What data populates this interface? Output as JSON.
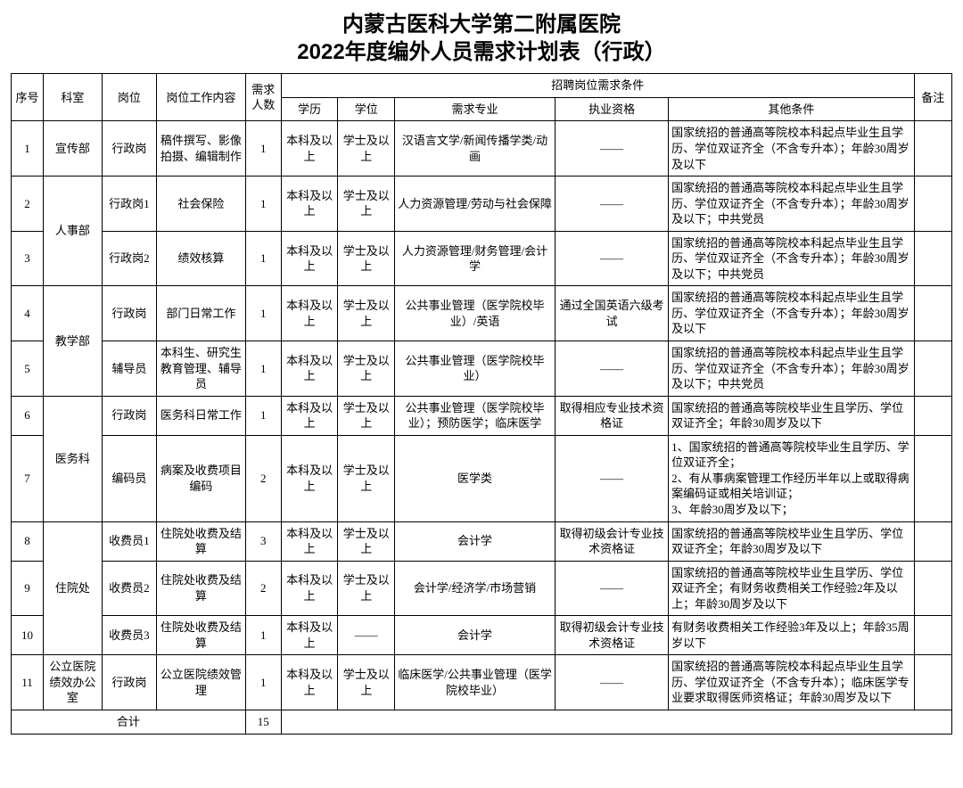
{
  "title_line1": "内蒙古医科大学第二附属医院",
  "title_line2": "2022年度编外人员需求计划表（行政）",
  "headers": {
    "seq": "序号",
    "dept": "科室",
    "pos": "岗位",
    "work": "岗位工作内容",
    "num": "需求人数",
    "req_group": "招聘岗位需求条件",
    "edu": "学历",
    "degree": "学位",
    "major": "需求专业",
    "qual": "执业资格",
    "other": "其他条件",
    "note": "备注"
  },
  "rows": [
    {
      "seq": "1",
      "dept": "宣传部",
      "pos": "行政岗",
      "work": "稿件撰写、影像拍摄、编辑制作",
      "num": "1",
      "edu": "本科及以上",
      "deg": "学士及以上",
      "major": "汉语言文学/新闻传播学类/动画",
      "qual": "——",
      "other": "国家统招的普通高等院校本科起点毕业生且学历、学位双证齐全（不含专升本）；年龄30周岁及以下",
      "note": ""
    },
    {
      "seq": "2",
      "dept": "人事部",
      "pos": "行政岗1",
      "work": "社会保险",
      "num": "1",
      "edu": "本科及以上",
      "deg": "学士及以上",
      "major": "人力资源管理/劳动与社会保障",
      "qual": "——",
      "other": "国家统招的普通高等院校本科起点毕业生且学历、学位双证齐全（不含专升本）；年龄30周岁及以下；中共党员",
      "note": ""
    },
    {
      "seq": "3",
      "dept": "",
      "pos": "行政岗2",
      "work": "绩效核算",
      "num": "1",
      "edu": "本科及以上",
      "deg": "学士及以上",
      "major": "人力资源管理/财务管理/会计学",
      "qual": "——",
      "other": "国家统招的普通高等院校本科起点毕业生且学历、学位双证齐全（不含专升本）；年龄30周岁及以下；中共党员",
      "note": ""
    },
    {
      "seq": "4",
      "dept": "教学部",
      "pos": "行政岗",
      "work": "部门日常工作",
      "num": "1",
      "edu": "本科及以上",
      "deg": "学士及以上",
      "major": "公共事业管理（医学院校毕业）/英语",
      "qual": "通过全国英语六级考试",
      "other": "国家统招的普通高等院校本科起点毕业生且学历、学位双证齐全（不含专升本）；年龄30周岁及以下",
      "note": ""
    },
    {
      "seq": "5",
      "dept": "",
      "pos": "辅导员",
      "work": "本科生、研究生教育管理、辅导员",
      "num": "1",
      "edu": "本科及以上",
      "deg": "学士及以上",
      "major": "公共事业管理（医学院校毕业）",
      "qual": "——",
      "other": "国家统招的普通高等院校本科起点毕业生且学历、学位双证齐全（不含专升本）；年龄30周岁及以下；中共党员",
      "note": ""
    },
    {
      "seq": "6",
      "dept": "医务科",
      "pos": "行政岗",
      "work": "医务科日常工作",
      "num": "1",
      "edu": "本科及以上",
      "deg": "学士及以上",
      "major": "公共事业管理（医学院校毕业）；预防医学；临床医学",
      "qual": "取得相应专业技术资格证",
      "other": "国家统招的普通高等院校毕业生且学历、学位双证齐全；年龄30周岁及以下",
      "note": ""
    },
    {
      "seq": "7",
      "dept": "",
      "pos": "编码员",
      "work": "病案及收费项目编码",
      "num": "2",
      "edu": "本科及以上",
      "deg": "学士及以上",
      "major": "医学类",
      "qual": "——",
      "other": "1、国家统招的普通高等院校毕业生且学历、学位双证齐全；\n2、有从事病案管理工作经历半年以上或取得病案编码证或相关培训证；\n3、年龄30周岁及以下；",
      "note": ""
    },
    {
      "seq": "8",
      "dept": "住院处",
      "pos": "收费员1",
      "work": "住院处收费及结算",
      "num": "3",
      "edu": "本科及以上",
      "deg": "学士及以上",
      "major": "会计学",
      "qual": "取得初级会计专业技术资格证",
      "other": "国家统招的普通高等院校毕业生且学历、学位双证齐全；年龄30周岁及以下",
      "note": ""
    },
    {
      "seq": "9",
      "dept": "",
      "pos": "收费员2",
      "work": "住院处收费及结算",
      "num": "2",
      "edu": "本科及以上",
      "deg": "学士及以上",
      "major": "会计学/经济学/市场营销",
      "qual": "——",
      "other": "国家统招的普通高等院校毕业生且学历、学位双证齐全；有财务收费相关工作经验2年及以上；年龄30周岁及以下",
      "note": ""
    },
    {
      "seq": "10",
      "dept": "",
      "pos": "收费员3",
      "work": "住院处收费及结算",
      "num": "1",
      "edu": "本科及以上",
      "deg": "——",
      "major": "会计学",
      "qual": "取得初级会计专业技术资格证",
      "other": "有财务收费相关工作经验3年及以上；年龄35周岁以下",
      "note": ""
    },
    {
      "seq": "11",
      "dept": "公立医院绩效办公室",
      "pos": "行政岗",
      "work": "公立医院绩效管理",
      "num": "1",
      "edu": "本科及以上",
      "deg": "学士及以上",
      "major": "临床医学/公共事业管理（医学院校毕业）",
      "qual": "——",
      "other": "国家统招的普通高等院校本科起点毕业生且学历、学位双证齐全（不含专升本）；临床医学专业要求取得医师资格证；年龄30周岁及以下",
      "note": ""
    }
  ],
  "total_label": "合计",
  "total_num": "15",
  "dept_spans": {
    "0": 1,
    "1": 2,
    "3": 2,
    "5": 2,
    "7": 3,
    "10": 1
  }
}
